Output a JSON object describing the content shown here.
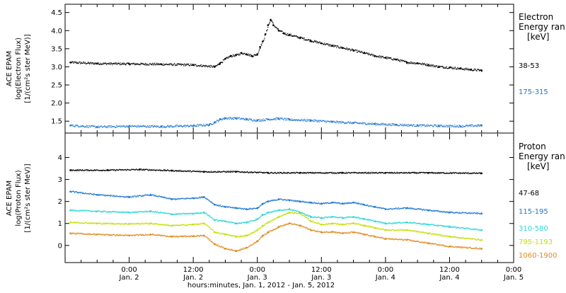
{
  "chart_data": [
    {
      "type": "scatter",
      "panel": "electron",
      "ylabel_lines": [
        "ACE EPAM",
        "log(Electron Flux)",
        "[1/(cm²s ster MeV)]"
      ],
      "ylim": [
        1.25,
        4.65
      ],
      "yticks": [
        1.5,
        2.0,
        2.5,
        3.0,
        3.5,
        4.0,
        4.5
      ],
      "ytick_labels": [
        "1.5",
        "2.0",
        "2.5",
        "3.0",
        "3.5",
        "4.0",
        "4.5"
      ],
      "legend_title": [
        "Electron",
        "Energy ran",
        "[keV]"
      ],
      "series": [
        {
          "name": "38-53",
          "color": "#000000",
          "points": [
            [
              -11,
              3.12
            ],
            [
              -6,
              3.09
            ],
            [
              0,
              3.08
            ],
            [
              6,
              3.07
            ],
            [
              12,
              3.05
            ],
            [
              16,
              3.0
            ],
            [
              17,
              3.1
            ],
            [
              18,
              3.22
            ],
            [
              19,
              3.3
            ],
            [
              20,
              3.32
            ],
            [
              21,
              3.38
            ],
            [
              22,
              3.35
            ],
            [
              23,
              3.3
            ],
            [
              24,
              3.35
            ],
            [
              24.5,
              3.55
            ],
            [
              25,
              3.7
            ],
            [
              25.5,
              3.9
            ],
            [
              26,
              4.15
            ],
            [
              26.5,
              4.3
            ],
            [
              27,
              4.15
            ],
            [
              28,
              4.0
            ],
            [
              29,
              3.92
            ],
            [
              30,
              3.88
            ],
            [
              32,
              3.8
            ],
            [
              34,
              3.72
            ],
            [
              36,
              3.65
            ],
            [
              38,
              3.58
            ],
            [
              40,
              3.52
            ],
            [
              42,
              3.45
            ],
            [
              44,
              3.38
            ],
            [
              46,
              3.3
            ],
            [
              48,
              3.25
            ],
            [
              50,
              3.2
            ],
            [
              52,
              3.12
            ],
            [
              54,
              3.1
            ],
            [
              56,
              3.05
            ],
            [
              58,
              3.0
            ],
            [
              60,
              2.98
            ],
            [
              62,
              2.95
            ],
            [
              64,
              2.92
            ],
            [
              66,
              2.9
            ]
          ]
        },
        {
          "name": "175-315",
          "color": "#1f78d1",
          "points": [
            [
              -11,
              1.38
            ],
            [
              -6,
              1.34
            ],
            [
              0,
              1.36
            ],
            [
              6,
              1.35
            ],
            [
              12,
              1.37
            ],
            [
              15,
              1.4
            ],
            [
              16,
              1.47
            ],
            [
              17,
              1.55
            ],
            [
              18,
              1.58
            ],
            [
              20,
              1.58
            ],
            [
              22,
              1.55
            ],
            [
              24,
              1.52
            ],
            [
              26,
              1.55
            ],
            [
              28,
              1.57
            ],
            [
              30,
              1.54
            ],
            [
              34,
              1.52
            ],
            [
              38,
              1.48
            ],
            [
              42,
              1.45
            ],
            [
              46,
              1.42
            ],
            [
              50,
              1.4
            ],
            [
              54,
              1.38
            ],
            [
              58,
              1.37
            ],
            [
              62,
              1.36
            ],
            [
              66,
              1.38
            ]
          ]
        }
      ]
    },
    {
      "type": "scatter",
      "panel": "proton",
      "ylabel_lines": [
        "ACE EPAM",
        "log(Proton Flux)",
        "[1/(cm²s ster MeV)]"
      ],
      "ylim": [
        -0.65,
        4.95
      ],
      "yticks": [
        0,
        1,
        2,
        3,
        4
      ],
      "ytick_labels": [
        "0",
        "1",
        "2",
        "3",
        "4"
      ],
      "legend_title": [
        "Proton",
        "Energy ran",
        "[keV]"
      ],
      "series": [
        {
          "name": "47-68",
          "color": "#000000",
          "points": [
            [
              -11,
              3.42
            ],
            [
              -4,
              3.42
            ],
            [
              2,
              3.45
            ],
            [
              8,
              3.4
            ],
            [
              14,
              3.35
            ],
            [
              20,
              3.35
            ],
            [
              26,
              3.3
            ],
            [
              32,
              3.3
            ],
            [
              40,
              3.3
            ],
            [
              48,
              3.3
            ],
            [
              56,
              3.3
            ],
            [
              66,
              3.28
            ]
          ]
        },
        {
          "name": "115-195",
          "color": "#1f78d1",
          "points": [
            [
              -11,
              2.45
            ],
            [
              -6,
              2.3
            ],
            [
              0,
              2.2
            ],
            [
              4,
              2.3
            ],
            [
              8,
              2.1
            ],
            [
              12,
              2.15
            ],
            [
              14,
              2.2
            ],
            [
              16,
              1.85
            ],
            [
              18,
              1.75
            ],
            [
              20,
              1.7
            ],
            [
              22,
              1.65
            ],
            [
              24,
              1.7
            ],
            [
              25,
              1.9
            ],
            [
              26,
              2.0
            ],
            [
              28,
              2.1
            ],
            [
              30,
              2.05
            ],
            [
              32,
              2.0
            ],
            [
              34,
              1.95
            ],
            [
              36,
              1.9
            ],
            [
              38,
              1.95
            ],
            [
              40,
              1.9
            ],
            [
              42,
              1.95
            ],
            [
              44,
              1.85
            ],
            [
              46,
              1.75
            ],
            [
              48,
              1.65
            ],
            [
              52,
              1.7
            ],
            [
              56,
              1.6
            ],
            [
              60,
              1.5
            ],
            [
              66,
              1.45
            ]
          ]
        },
        {
          "name": "310-580",
          "color": "#2fd6d6",
          "points": [
            [
              -11,
              1.6
            ],
            [
              -6,
              1.55
            ],
            [
              0,
              1.5
            ],
            [
              4,
              1.55
            ],
            [
              8,
              1.42
            ],
            [
              12,
              1.45
            ],
            [
              14,
              1.5
            ],
            [
              16,
              1.15
            ],
            [
              18,
              1.1
            ],
            [
              20,
              1.0
            ],
            [
              22,
              1.05
            ],
            [
              24,
              1.2
            ],
            [
              25,
              1.4
            ],
            [
              26,
              1.5
            ],
            [
              28,
              1.6
            ],
            [
              30,
              1.65
            ],
            [
              32,
              1.5
            ],
            [
              34,
              1.3
            ],
            [
              36,
              1.25
            ],
            [
              38,
              1.3
            ],
            [
              40,
              1.25
            ],
            [
              42,
              1.3
            ],
            [
              44,
              1.2
            ],
            [
              46,
              1.1
            ],
            [
              48,
              1.0
            ],
            [
              52,
              1.05
            ],
            [
              56,
              0.95
            ],
            [
              60,
              0.85
            ],
            [
              66,
              0.7
            ]
          ]
        },
        {
          "name": "795-1193",
          "color": "#c4e000",
          "points": [
            [
              -11,
              1.05
            ],
            [
              -6,
              1.0
            ],
            [
              0,
              0.98
            ],
            [
              4,
              1.0
            ],
            [
              8,
              0.9
            ],
            [
              12,
              0.95
            ],
            [
              14,
              1.0
            ],
            [
              16,
              0.6
            ],
            [
              18,
              0.5
            ],
            [
              20,
              0.4
            ],
            [
              22,
              0.45
            ],
            [
              24,
              0.7
            ],
            [
              25,
              0.9
            ],
            [
              26,
              1.05
            ],
            [
              28,
              1.3
            ],
            [
              30,
              1.5
            ],
            [
              32,
              1.45
            ],
            [
              34,
              1.1
            ],
            [
              36,
              0.95
            ],
            [
              38,
              1.0
            ],
            [
              40,
              0.95
            ],
            [
              42,
              1.0
            ],
            [
              44,
              0.9
            ],
            [
              46,
              0.8
            ],
            [
              48,
              0.7
            ],
            [
              52,
              0.7
            ],
            [
              56,
              0.55
            ],
            [
              60,
              0.4
            ],
            [
              66,
              0.25
            ]
          ]
        },
        {
          "name": "1060-1900",
          "color": "#e08a1f",
          "points": [
            [
              -11,
              0.55
            ],
            [
              -6,
              0.5
            ],
            [
              0,
              0.45
            ],
            [
              4,
              0.5
            ],
            [
              8,
              0.4
            ],
            [
              12,
              0.42
            ],
            [
              14,
              0.45
            ],
            [
              16,
              0.05
            ],
            [
              18,
              -0.15
            ],
            [
              20,
              -0.25
            ],
            [
              22,
              -0.1
            ],
            [
              24,
              0.2
            ],
            [
              25,
              0.45
            ],
            [
              26,
              0.6
            ],
            [
              28,
              0.85
            ],
            [
              30,
              1.0
            ],
            [
              32,
              0.9
            ],
            [
              34,
              0.7
            ],
            [
              36,
              0.6
            ],
            [
              38,
              0.62
            ],
            [
              40,
              0.55
            ],
            [
              42,
              0.6
            ],
            [
              44,
              0.5
            ],
            [
              46,
              0.4
            ],
            [
              48,
              0.3
            ],
            [
              52,
              0.25
            ],
            [
              56,
              0.1
            ],
            [
              60,
              -0.05
            ],
            [
              66,
              -0.15
            ]
          ]
        }
      ]
    }
  ],
  "xaxis": {
    "xlim": [
      -12,
      72
    ],
    "ticks": [
      0,
      24,
      48,
      72
    ],
    "tick_labels": [
      {
        "time": "0:00",
        "date": "Jan. 2"
      },
      {
        "time": "12:00",
        "date": "Jan. 2"
      },
      {
        "time": "0:00",
        "date": "Jan. 3"
      },
      {
        "time": "12:00",
        "date": "Jan. 3"
      },
      {
        "time": "0:00",
        "date": "Jan. 4"
      },
      {
        "time": "12:00",
        "date": "Jan. 4"
      },
      {
        "time": "0:00",
        "date": "Jan. 5"
      }
    ],
    "tick_values": [
      0,
      12,
      24,
      36,
      48,
      60,
      72
    ],
    "xlabel": "hours:minutes, Jan.  1, 2012 - Jan.  5, 2012"
  },
  "colors": {
    "black": "#000000",
    "blue": "#1f78d1",
    "cyan": "#2fd6d6",
    "yellow": "#c4e000",
    "orange": "#e08a1f"
  }
}
